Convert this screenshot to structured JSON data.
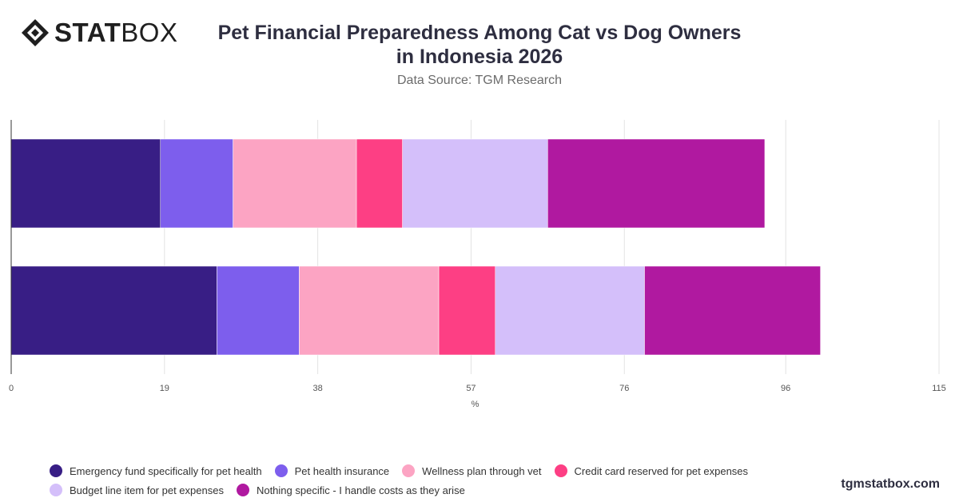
{
  "brand": {
    "logo_bold": "STAT",
    "logo_light": "BOX",
    "watermark": "tgmstatbox.com"
  },
  "header": {
    "title_line1": "Pet Financial Preparedness Among Cat vs Dog Owners",
    "title_line2": "in Indonesia 2026",
    "subtitle": "Data Source: TGM Research"
  },
  "chart_data": {
    "type": "bar",
    "orientation": "horizontal",
    "stacked": true,
    "categories": [
      "",
      ""
    ],
    "xlabel": "%",
    "xlim": [
      0,
      115
    ],
    "xticks": [
      0,
      19,
      38,
      57,
      76,
      96,
      115
    ],
    "grid": true,
    "legend_position": "bottom",
    "series": [
      {
        "name": "Emergency fund specifically for pet health",
        "color": "#381e85",
        "values": [
          18.5,
          25.5
        ]
      },
      {
        "name": "Pet health insurance",
        "color": "#7d5eed",
        "values": [
          9.0,
          10.2
        ]
      },
      {
        "name": "Wellness plan through vet",
        "color": "#fca4c3",
        "values": [
          15.3,
          17.3
        ]
      },
      {
        "name": "Credit card reserved for pet expenses",
        "color": "#fd3f84",
        "values": [
          5.7,
          7.0
        ]
      },
      {
        "name": "Budget line item for pet expenses",
        "color": "#d4bffa",
        "values": [
          18.0,
          18.5
        ]
      },
      {
        "name": "Nothing specific - I handle costs as they arise",
        "color": "#b019a0",
        "values": [
          26.9,
          21.8
        ]
      }
    ]
  }
}
